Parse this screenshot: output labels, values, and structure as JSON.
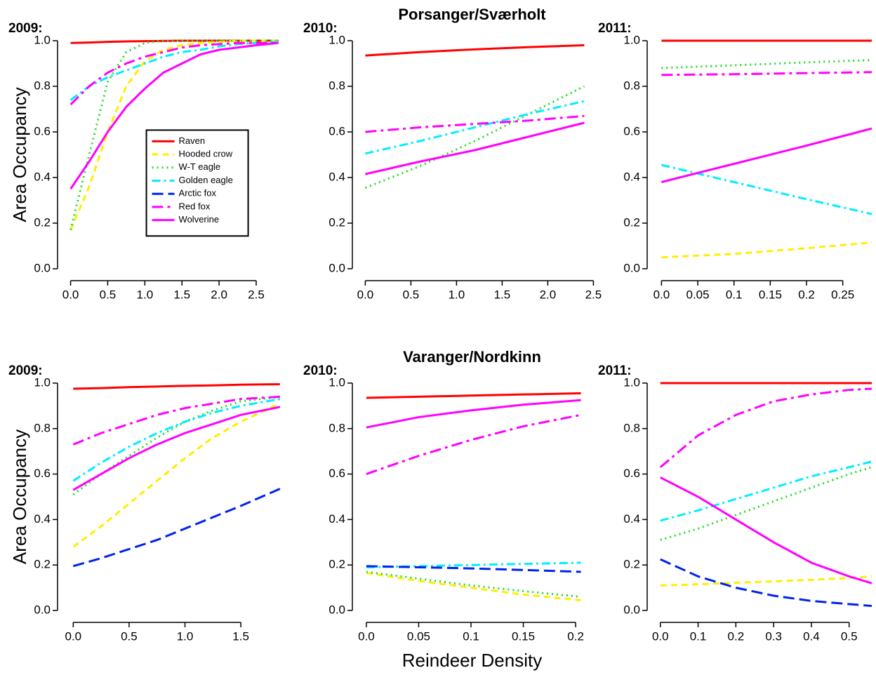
{
  "chart_data": [
    {
      "type": "line",
      "title": "2009:",
      "ylabel": "Area Occupancy",
      "legend": "center",
      "x": [
        0,
        0.25,
        0.5,
        0.75,
        1,
        1.25,
        1.5,
        1.75,
        2,
        2.25,
        2.5,
        2.8
      ],
      "xlim": [
        -0.1,
        2.85
      ],
      "ylim": [
        -0.04,
        1.04
      ],
      "xticks": [
        {
          "value": 0,
          "label": "0.0"
        },
        0.5,
        {
          "value": 1,
          "label": "1.0"
        },
        1.5,
        {
          "value": 2,
          "label": "2.0"
        },
        2.5
      ],
      "yticks": [
        {
          "value": 0,
          "label": "0.0"
        },
        0.2,
        0.4,
        0.6,
        0.8,
        {
          "value": 1,
          "label": "1.0"
        }
      ],
      "series": [
        {
          "name": "Raven",
          "color": "#ff0000",
          "linestyle": "solid",
          "values": [
            0.99,
            0.992,
            0.995,
            0.997,
            0.998,
            0.999,
            1,
            1,
            1,
            1,
            1,
            1
          ]
        },
        {
          "name": "Hooded crow",
          "color": "#ffee00",
          "linestyle": "dashed",
          "values": [
            0.17,
            0.36,
            0.6,
            0.8,
            0.91,
            0.96,
            0.98,
            0.99,
            0.995,
            1,
            1,
            1
          ]
        },
        {
          "name": "W-T eagle",
          "color": "#22dd22",
          "linestyle": "dotted",
          "values": [
            0.17,
            0.5,
            0.82,
            0.95,
            0.99,
            1,
            1,
            1,
            1,
            1,
            1,
            1
          ]
        },
        {
          "name": "Golden eagle",
          "color": "#00eeff",
          "linestyle": "dashdot",
          "values": [
            0.74,
            0.8,
            0.84,
            0.87,
            0.9,
            0.93,
            0.95,
            0.96,
            0.975,
            0.985,
            0.99,
            0.995
          ]
        },
        {
          "name": "Arctic fox",
          "color": "#0022ee",
          "linestyle": "longdash",
          "values": [
            null,
            null,
            null,
            null,
            null,
            null,
            null,
            null,
            null,
            null,
            null,
            null
          ]
        },
        {
          "name": "Red fox",
          "color": "#ff00ff",
          "linestyle": "twodash",
          "values": [
            0.72,
            0.8,
            0.86,
            0.9,
            0.93,
            0.95,
            0.97,
            0.98,
            0.985,
            0.99,
            0.99,
            0.99
          ]
        },
        {
          "name": "Wolverine",
          "color": "#ff00ff",
          "linestyle": "solid",
          "values": [
            0.35,
            0.47,
            0.6,
            0.71,
            0.79,
            0.86,
            0.9,
            0.94,
            0.96,
            0.97,
            0.98,
            0.99
          ]
        }
      ]
    },
    {
      "type": "line",
      "title": "2010:",
      "suptitle": "Porsanger/Sværholt",
      "x": [
        0,
        0.6,
        1.2,
        1.8,
        2.4
      ],
      "xlim": [
        -0.08,
        2.42
      ],
      "ylim": [
        -0.04,
        1.04
      ],
      "xticks": [
        {
          "value": 0,
          "label": "0.0"
        },
        0.5,
        {
          "value": 1,
          "label": "1.0"
        },
        1.5,
        {
          "value": 2,
          "label": "2.0"
        },
        2.5
      ],
      "yticks": [
        {
          "value": 0,
          "label": "0.0"
        },
        0.2,
        0.4,
        0.6,
        0.8,
        {
          "value": 1,
          "label": "1.0"
        }
      ],
      "series": [
        {
          "color": "#ff0000",
          "linestyle": "solid",
          "values": [
            0.935,
            0.95,
            0.962,
            0.972,
            0.98
          ]
        },
        {
          "color": "#22dd22",
          "linestyle": "dotted",
          "values": [
            0.355,
            0.45,
            0.56,
            0.68,
            0.8
          ]
        },
        {
          "color": "#00eeff",
          "linestyle": "dashdot",
          "values": [
            0.505,
            0.56,
            0.62,
            0.68,
            0.735
          ]
        },
        {
          "color": "#ff00ff",
          "linestyle": "twodash",
          "values": [
            0.6,
            0.62,
            0.635,
            0.65,
            0.67
          ]
        },
        {
          "color": "#ff00ff",
          "linestyle": "solid",
          "values": [
            0.415,
            0.47,
            0.52,
            0.58,
            0.64
          ]
        }
      ]
    },
    {
      "type": "line",
      "title": "2011:",
      "x": [
        0,
        0.1,
        0.2,
        0.29
      ],
      "xlim": [
        -0.012,
        0.29
      ],
      "ylim": [
        -0.04,
        1.04
      ],
      "xticks": [
        {
          "value": 0,
          "label": "0.0"
        },
        0.05,
        0.1,
        0.15,
        0.2,
        0.25
      ],
      "yticks": [
        {
          "value": 0,
          "label": "0.0"
        },
        0.2,
        0.4,
        0.6,
        0.8,
        {
          "value": 1,
          "label": "1.0"
        }
      ],
      "series": [
        {
          "color": "#ff0000",
          "linestyle": "solid",
          "values": [
            1,
            1,
            1,
            1
          ]
        },
        {
          "color": "#ffee00",
          "linestyle": "dashed",
          "values": [
            0.05,
            0.065,
            0.09,
            0.115
          ]
        },
        {
          "color": "#22dd22",
          "linestyle": "dotted",
          "values": [
            0.88,
            0.892,
            0.905,
            0.915
          ]
        },
        {
          "color": "#00eeff",
          "linestyle": "dashdot",
          "values": [
            0.455,
            0.38,
            0.305,
            0.24
          ]
        },
        {
          "color": "#ff00ff",
          "linestyle": "twodash",
          "values": [
            0.85,
            0.853,
            0.858,
            0.862
          ]
        },
        {
          "color": "#ff00ff",
          "linestyle": "solid",
          "values": [
            0.38,
            0.46,
            0.54,
            0.615
          ]
        }
      ]
    },
    {
      "type": "line",
      "title": "2009:",
      "ylabel": "Area Occupancy",
      "x": [
        0,
        0.25,
        0.5,
        0.75,
        1,
        1.25,
        1.5,
        1.85
      ],
      "xlim": [
        -0.09,
        1.87
      ],
      "ylim": [
        -0.04,
        1.04
      ],
      "xticks": [
        {
          "value": 0,
          "label": "0.0"
        },
        0.5,
        {
          "value": 1,
          "label": "1.0"
        },
        1.5
      ],
      "yticks": [
        {
          "value": 0,
          "label": "0.0"
        },
        0.2,
        0.4,
        0.6,
        0.8,
        {
          "value": 1,
          "label": "1.0"
        }
      ],
      "series": [
        {
          "color": "#ff0000",
          "linestyle": "solid",
          "values": [
            0.975,
            0.978,
            0.982,
            0.985,
            0.988,
            0.99,
            0.993,
            0.995
          ]
        },
        {
          "color": "#ffee00",
          "linestyle": "dashed",
          "values": [
            0.28,
            0.37,
            0.47,
            0.57,
            0.67,
            0.76,
            0.83,
            0.91
          ]
        },
        {
          "color": "#22dd22",
          "linestyle": "dotted",
          "values": [
            0.51,
            0.6,
            0.68,
            0.76,
            0.83,
            0.88,
            0.92,
            0.94
          ]
        },
        {
          "color": "#00eeff",
          "linestyle": "dashdot",
          "values": [
            0.57,
            0.65,
            0.72,
            0.78,
            0.83,
            0.87,
            0.9,
            0.93
          ]
        },
        {
          "color": "#0022ee",
          "linestyle": "longdash",
          "values": [
            0.195,
            0.23,
            0.27,
            0.31,
            0.36,
            0.41,
            0.46,
            0.535
          ]
        },
        {
          "color": "#ff00ff",
          "linestyle": "twodash",
          "values": [
            0.73,
            0.78,
            0.82,
            0.86,
            0.89,
            0.91,
            0.93,
            0.94
          ]
        },
        {
          "color": "#ff00ff",
          "linestyle": "solid",
          "values": [
            0.53,
            0.6,
            0.67,
            0.73,
            0.78,
            0.82,
            0.86,
            0.895
          ]
        }
      ]
    },
    {
      "type": "line",
      "title": "2010:",
      "suptitle": "Varanger/Nordkinn",
      "xlabel": "Reindeer Density",
      "x": [
        0,
        0.05,
        0.1,
        0.15,
        0.205
      ],
      "xlim": [
        -0.008,
        0.21
      ],
      "ylim": [
        -0.04,
        1.04
      ],
      "xticks": [
        {
          "value": 0,
          "label": "0.0"
        },
        0.05,
        0.1,
        0.15,
        0.2
      ],
      "yticks": [
        {
          "value": 0,
          "label": "0.0"
        },
        0.2,
        0.4,
        0.6,
        0.8,
        {
          "value": 1,
          "label": "1.0"
        }
      ],
      "series": [
        {
          "color": "#ff0000",
          "linestyle": "solid",
          "values": [
            0.935,
            0.94,
            0.945,
            0.95,
            0.955
          ]
        },
        {
          "color": "#ffee00",
          "linestyle": "dashed",
          "values": [
            0.165,
            0.13,
            0.1,
            0.07,
            0.045
          ]
        },
        {
          "color": "#22dd22",
          "linestyle": "dotted",
          "values": [
            0.17,
            0.14,
            0.11,
            0.085,
            0.06
          ]
        },
        {
          "color": "#00eeff",
          "linestyle": "dashdot",
          "values": [
            0.19,
            0.195,
            0.2,
            0.205,
            0.21
          ]
        },
        {
          "color": "#0022ee",
          "linestyle": "longdash",
          "values": [
            0.195,
            0.19,
            0.185,
            0.178,
            0.17
          ]
        },
        {
          "color": "#ff00ff",
          "linestyle": "twodash",
          "values": [
            0.6,
            0.68,
            0.75,
            0.81,
            0.86
          ]
        },
        {
          "color": "#ff00ff",
          "linestyle": "solid",
          "values": [
            0.805,
            0.85,
            0.88,
            0.905,
            0.925
          ]
        }
      ]
    },
    {
      "type": "line",
      "title": "2011:",
      "x": [
        0,
        0.1,
        0.2,
        0.3,
        0.4,
        0.5,
        0.56
      ],
      "xlim": [
        -0.02,
        0.56
      ],
      "ylim": [
        -0.04,
        1.04
      ],
      "xticks": [
        {
          "value": 0,
          "label": "0.0"
        },
        0.1,
        0.2,
        0.3,
        0.4,
        0.5
      ],
      "yticks": [
        {
          "value": 0,
          "label": "0.0"
        },
        0.2,
        0.4,
        0.6,
        0.8,
        {
          "value": 1,
          "label": "1.0"
        }
      ],
      "series": [
        {
          "color": "#ff0000",
          "linestyle": "solid",
          "values": [
            1,
            1,
            1,
            1,
            1,
            1,
            1
          ]
        },
        {
          "color": "#ffee00",
          "linestyle": "dashed",
          "values": [
            0.11,
            0.115,
            0.122,
            0.128,
            0.135,
            0.143,
            0.15
          ]
        },
        {
          "color": "#22dd22",
          "linestyle": "dotted",
          "values": [
            0.31,
            0.36,
            0.42,
            0.48,
            0.54,
            0.6,
            0.63
          ]
        },
        {
          "color": "#00eeff",
          "linestyle": "dashdot",
          "values": [
            0.395,
            0.44,
            0.49,
            0.54,
            0.59,
            0.63,
            0.655
          ]
        },
        {
          "color": "#0022ee",
          "linestyle": "longdash",
          "values": [
            0.225,
            0.15,
            0.1,
            0.065,
            0.042,
            0.028,
            0.02
          ]
        },
        {
          "color": "#ff00ff",
          "linestyle": "twodash",
          "values": [
            0.63,
            0.77,
            0.86,
            0.92,
            0.95,
            0.97,
            0.975
          ]
        },
        {
          "color": "#ff00ff",
          "linestyle": "solid",
          "values": [
            0.585,
            0.5,
            0.4,
            0.3,
            0.21,
            0.15,
            0.12
          ]
        }
      ]
    }
  ]
}
